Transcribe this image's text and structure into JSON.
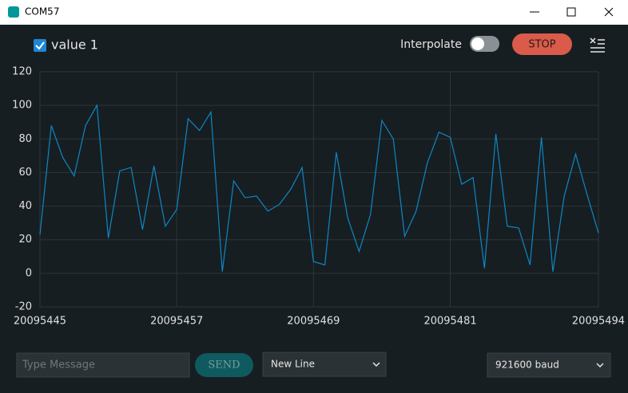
{
  "window": {
    "title": "COM57"
  },
  "controls": {
    "interpolate": "Interpolate",
    "stop": "STOP",
    "message_placeholder": "Type Message",
    "send": "SEND",
    "line_ending": "New Line",
    "baud": "921600 baud"
  },
  "chart_data": {
    "type": "line",
    "x": [
      20095445,
      20095446,
      20095447,
      20095448,
      20095449,
      20095450,
      20095451,
      20095452,
      20095453,
      20095454,
      20095455,
      20095456,
      20095457,
      20095458,
      20095459,
      20095460,
      20095461,
      20095462,
      20095463,
      20095464,
      20095465,
      20095466,
      20095467,
      20095468,
      20095469,
      20095470,
      20095471,
      20095472,
      20095473,
      20095474,
      20095475,
      20095476,
      20095477,
      20095478,
      20095479,
      20095480,
      20095481,
      20095482,
      20095483,
      20095484,
      20095485,
      20095486,
      20095487,
      20095488,
      20095489,
      20095490,
      20095491,
      20095492,
      20095493,
      20095494
    ],
    "series": [
      {
        "name": "value 1",
        "color": "#0e86c6",
        "values": [
          23,
          88,
          69,
          58,
          88,
          100,
          21,
          61,
          63,
          26,
          64,
          28,
          38,
          92,
          85,
          96,
          1,
          55,
          45,
          46,
          37,
          41,
          50,
          63,
          7,
          5,
          72,
          33,
          13,
          35,
          91,
          80,
          22,
          37,
          66,
          84,
          81,
          53,
          57,
          3,
          83,
          28,
          27,
          5,
          81,
          1,
          46,
          71,
          47,
          24
        ]
      }
    ],
    "xlim": [
      20095445,
      20095494
    ],
    "xticks": [
      20095445,
      20095457,
      20095469,
      20095481,
      20095494
    ],
    "ylim": [
      -20,
      120
    ],
    "yticks": [
      -20,
      0,
      20,
      40,
      60,
      80,
      100,
      120
    ],
    "grid": true
  }
}
